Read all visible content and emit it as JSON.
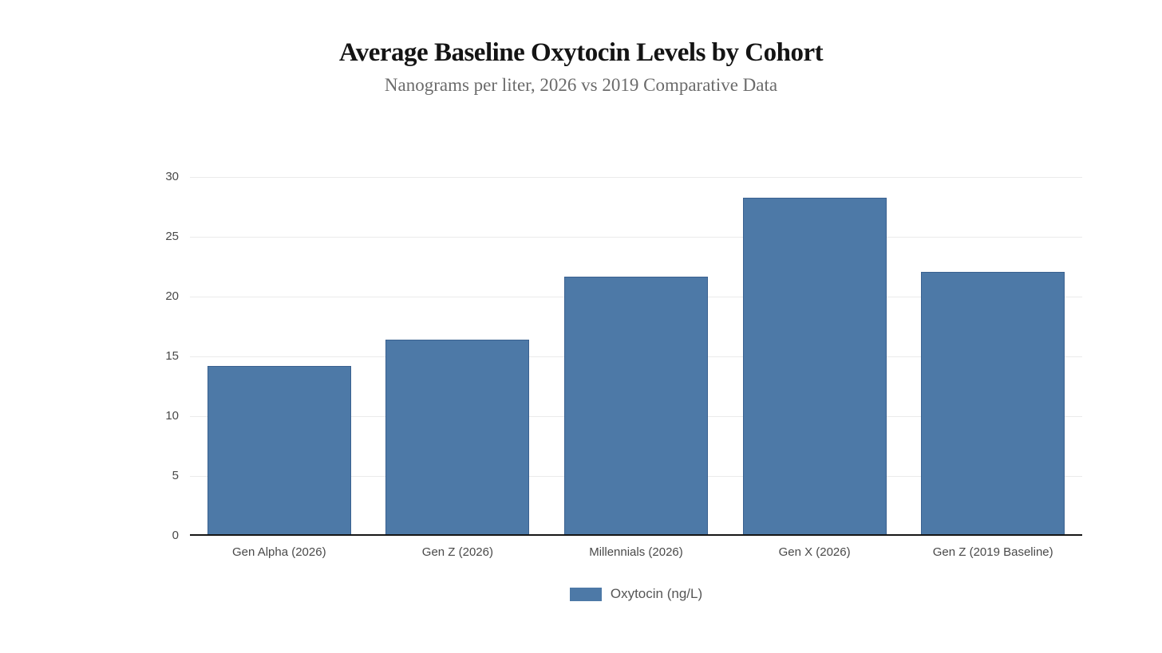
{
  "header": {
    "title": "Average Baseline Oxytocin Levels by Cohort",
    "subtitle": "Nanograms per liter, 2026 vs 2019 Comparative Data"
  },
  "chart_data": {
    "type": "bar",
    "title": "Average Baseline Oxytocin Levels by Cohort",
    "subtitle": "Nanograms per liter, 2026 vs 2019 Comparative Data",
    "categories": [
      "Gen Alpha (2026)",
      "Gen Z (2026)",
      "Millennials (2026)",
      "Gen X (2026)",
      "Gen Z (2019 Baseline)"
    ],
    "series": [
      {
        "name": "Oxytocin (ng/L)",
        "values": [
          14.2,
          16.4,
          21.7,
          28.3,
          22.1
        ]
      }
    ],
    "xlabel": "",
    "ylabel": "",
    "ylim": [
      0,
      30
    ],
    "yticks": [
      0,
      5,
      10,
      15,
      20,
      25,
      30
    ],
    "grid": true,
    "legend_position": "bottom"
  },
  "legend": {
    "label": "Oxytocin (ng/L)"
  },
  "colors": {
    "bar": "#4d79a7",
    "bar_border": "#3a6190",
    "grid": "#ebebeb",
    "axis": "#161616",
    "tick_label": "#494949",
    "legend_text": "#565656",
    "title": "#141414",
    "subtitle": "#6b6b6b",
    "background": "#ffffff"
  }
}
